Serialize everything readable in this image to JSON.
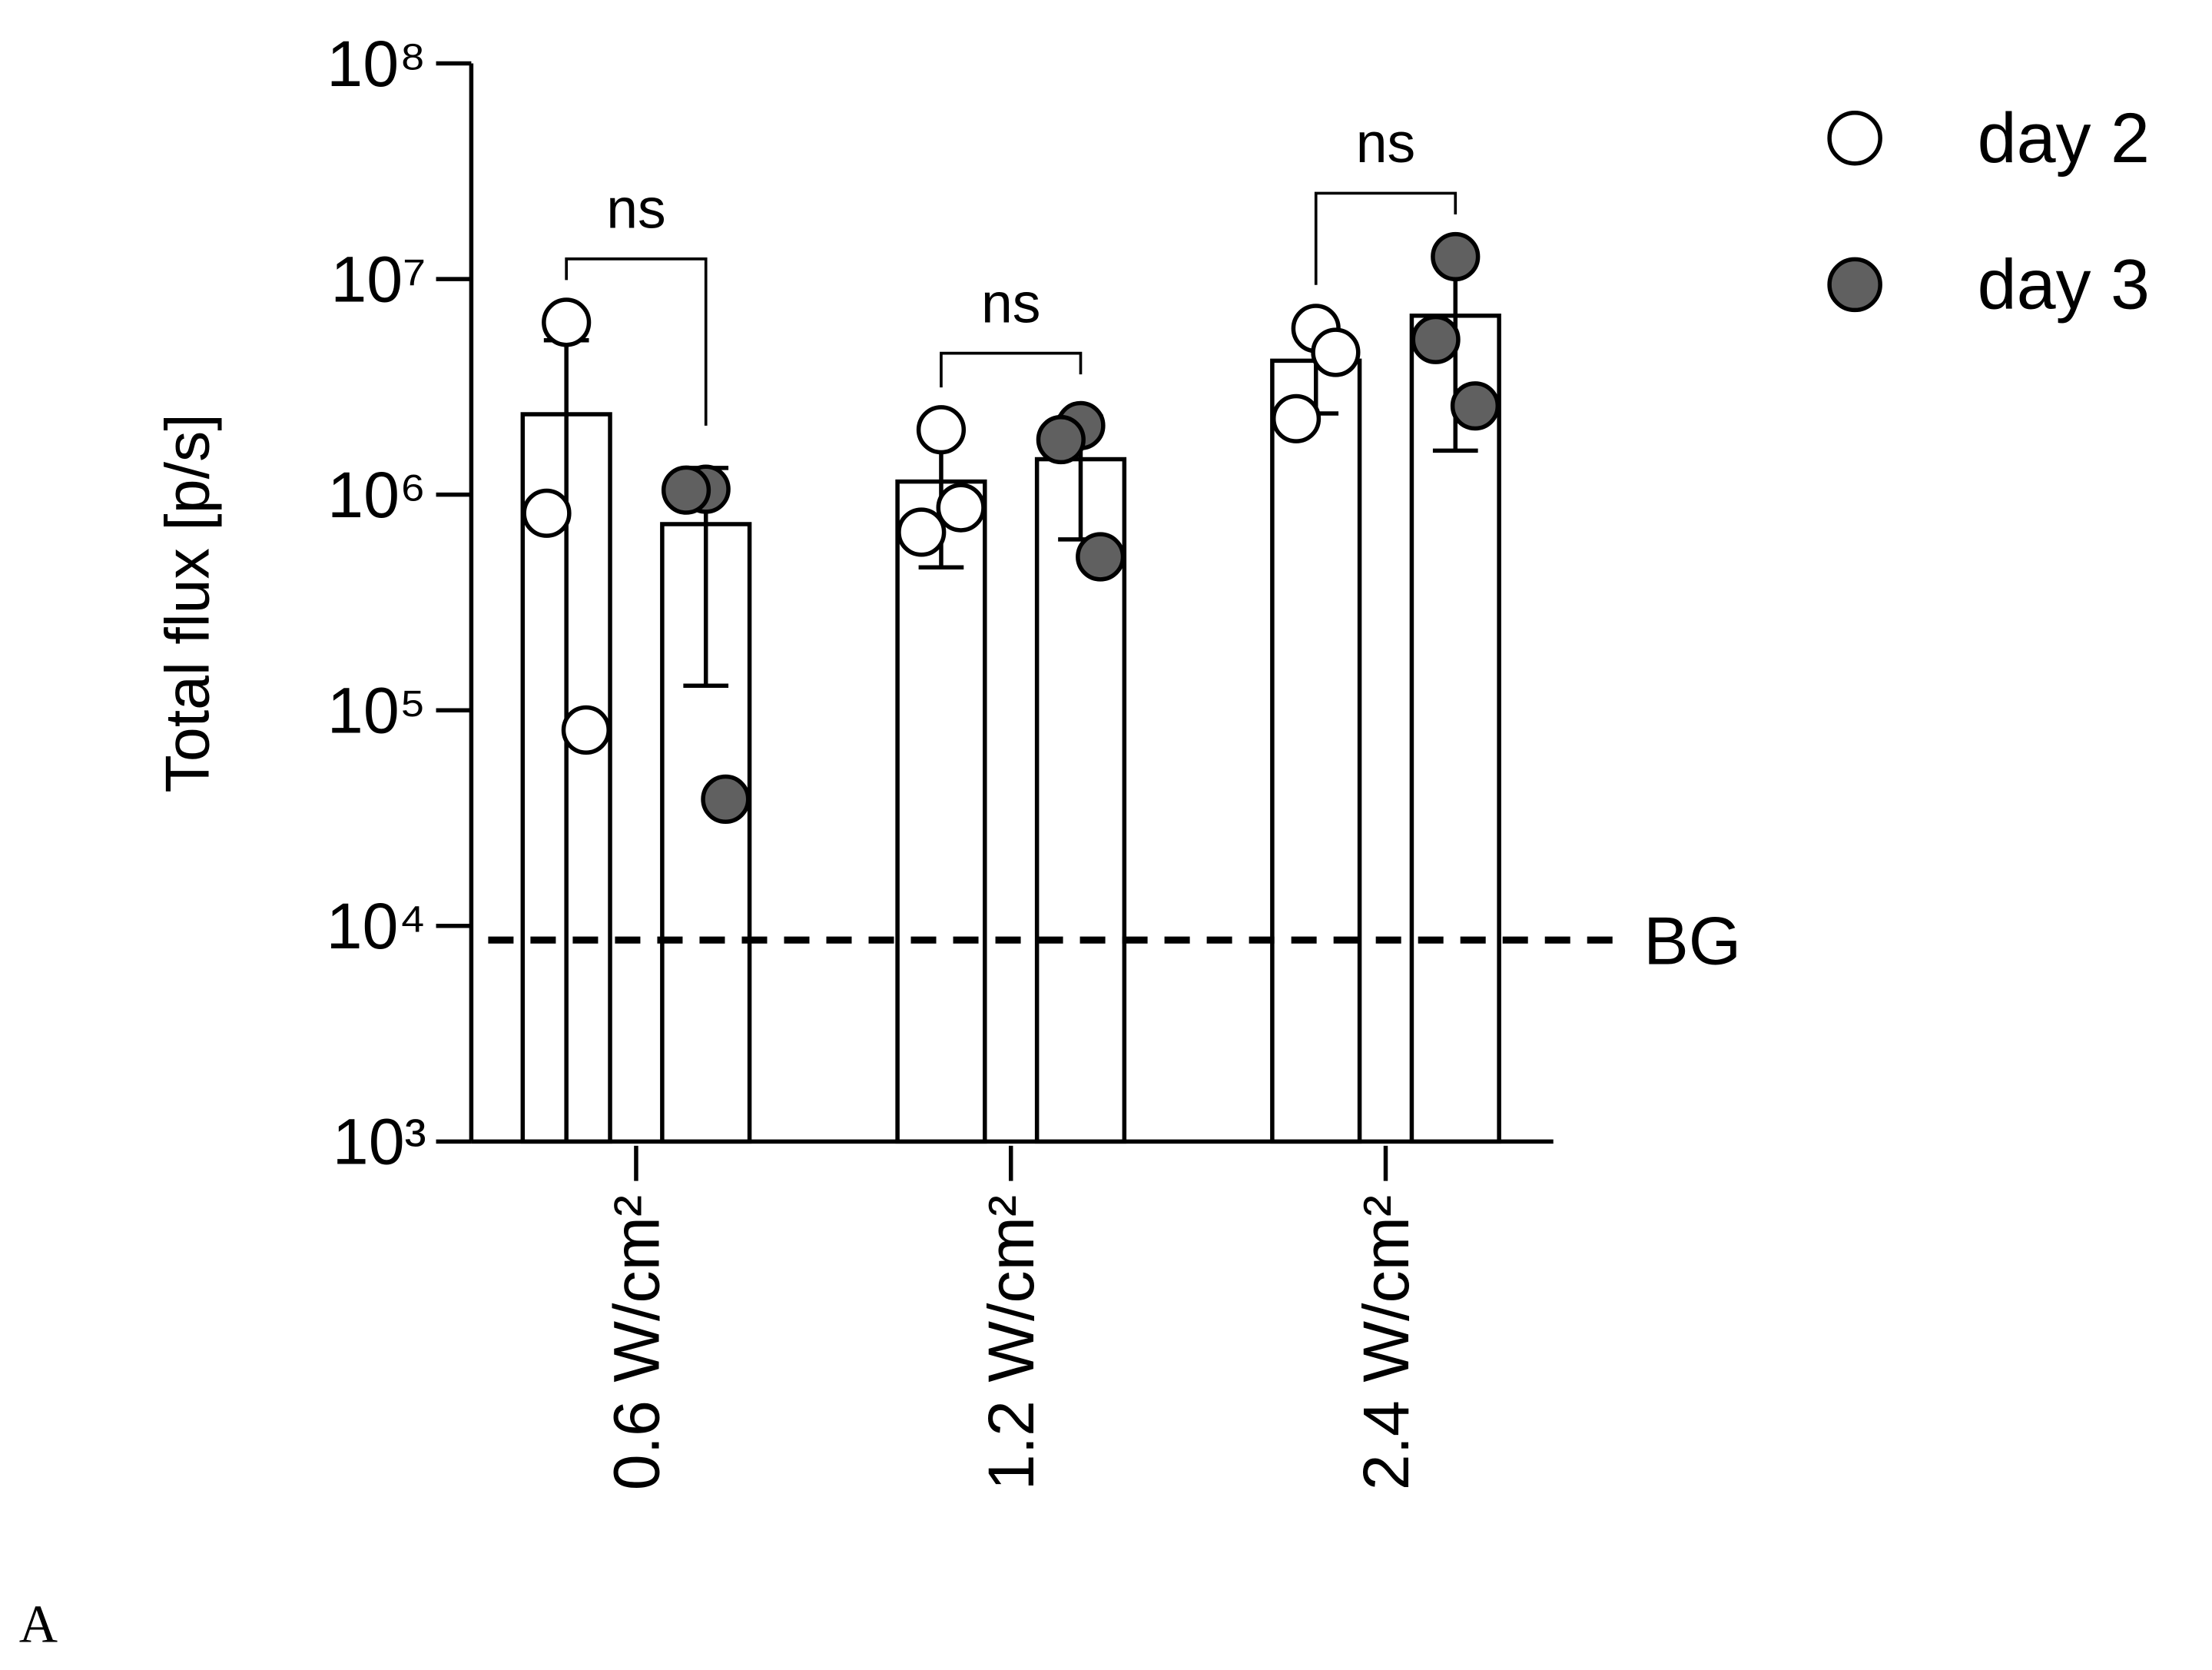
{
  "chart_data": {
    "type": "bar",
    "ylabel": "Total flux [p/s]",
    "categories": [
      "0.6 W/cm²",
      "1.2 W/cm²",
      "2.4 W/cm²"
    ],
    "log_scale": true,
    "ylim": [
      1000,
      100000000
    ],
    "yticks": [
      {
        "value": 1000,
        "label": "10³"
      },
      {
        "value": 10000,
        "label": "10⁴"
      },
      {
        "value": 100000,
        "label": "10⁵"
      },
      {
        "value": 1000000,
        "label": "10⁶"
      },
      {
        "value": 10000000,
        "label": "10⁷"
      },
      {
        "value": 100000000,
        "label": "10⁸"
      }
    ],
    "series": [
      {
        "name": "day 2",
        "color": "#ffffff",
        "values": [
          2360000,
          1150000,
          4180000
        ],
        "errors": [
          2840000,
          690000,
          1800000
        ],
        "points": [
          [
            6300000,
            820000,
            81000
          ],
          [
            2000000,
            670000,
            870000
          ],
          [
            5900000,
            2250000,
            4570000
          ]
        ]
      },
      {
        "name": "day 3",
        "color": "#606060",
        "values": [
          730000,
          1460000,
          6760000
        ],
        "errors": [
          600000,
          840000,
          5160000
        ],
        "points": [
          [
            1060000,
            1050000,
            38700
          ],
          [
            2090000,
            1800000,
            515000
          ],
          [
            12700000,
            5240000,
            2580000
          ]
        ]
      }
    ],
    "annotations": [
      "ns",
      "ns",
      "ns"
    ],
    "background": 8600,
    "background_label": "BG",
    "panel_label": "A"
  }
}
